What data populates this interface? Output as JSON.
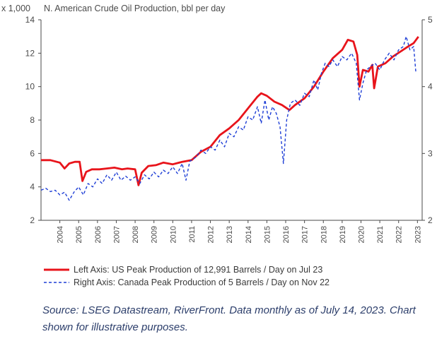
{
  "chart_data": {
    "type": "line",
    "title": "N. American Crude Oil Production, bbl per day",
    "left_axis": {
      "unit_label": "x 1,000",
      "ylim": [
        2,
        14
      ],
      "ticks": [
        2,
        4,
        6,
        8,
        10,
        12,
        14
      ]
    },
    "right_axis": {
      "ylim": [
        2,
        5
      ],
      "ticks": [
        2,
        3,
        4,
        5
      ]
    },
    "x_ticks": [
      "2004",
      "2005",
      "2006",
      "2007",
      "2008",
      "2009",
      "2010",
      "2011",
      "2012",
      "2013",
      "2014",
      "2015",
      "2016",
      "2017",
      "2018",
      "2019",
      "2020",
      "2021",
      "2022",
      "2023"
    ],
    "xlim": [
      2003.5,
      2023.75
    ],
    "grid": false,
    "series": [
      {
        "name": "Left Axis: US Peak Production of 12,991 Barrels / Day on Jul 23",
        "axis": "left",
        "color": "#e8141b",
        "style": "solid",
        "points": [
          [
            2003.5,
            5.6
          ],
          [
            2004.0,
            5.6
          ],
          [
            2004.5,
            5.45
          ],
          [
            2004.75,
            5.1
          ],
          [
            2005.0,
            5.4
          ],
          [
            2005.3,
            5.5
          ],
          [
            2005.55,
            5.5
          ],
          [
            2005.7,
            4.35
          ],
          [
            2005.9,
            4.9
          ],
          [
            2006.2,
            5.05
          ],
          [
            2006.6,
            5.05
          ],
          [
            2007.0,
            5.1
          ],
          [
            2007.4,
            5.15
          ],
          [
            2007.8,
            5.05
          ],
          [
            2008.1,
            5.1
          ],
          [
            2008.5,
            5.05
          ],
          [
            2008.68,
            4.1
          ],
          [
            2008.85,
            4.85
          ],
          [
            2009.2,
            5.25
          ],
          [
            2009.6,
            5.3
          ],
          [
            2010.0,
            5.45
          ],
          [
            2010.5,
            5.35
          ],
          [
            2011.0,
            5.5
          ],
          [
            2011.5,
            5.6
          ],
          [
            2012.0,
            6.1
          ],
          [
            2012.5,
            6.4
          ],
          [
            2013.0,
            7.1
          ],
          [
            2013.5,
            7.5
          ],
          [
            2014.0,
            8.0
          ],
          [
            2014.5,
            8.7
          ],
          [
            2015.0,
            9.4
          ],
          [
            2015.2,
            9.6
          ],
          [
            2015.5,
            9.45
          ],
          [
            2015.9,
            9.1
          ],
          [
            2016.3,
            8.9
          ],
          [
            2016.7,
            8.6
          ],
          [
            2017.0,
            8.9
          ],
          [
            2017.5,
            9.3
          ],
          [
            2018.0,
            10.0
          ],
          [
            2018.5,
            10.9
          ],
          [
            2019.0,
            11.7
          ],
          [
            2019.5,
            12.2
          ],
          [
            2019.8,
            12.8
          ],
          [
            2020.1,
            12.7
          ],
          [
            2020.3,
            11.9
          ],
          [
            2020.42,
            10.0
          ],
          [
            2020.6,
            11.0
          ],
          [
            2020.9,
            10.9
          ],
          [
            2021.1,
            11.3
          ],
          [
            2021.2,
            9.9
          ],
          [
            2021.4,
            11.2
          ],
          [
            2021.8,
            11.4
          ],
          [
            2022.2,
            11.8
          ],
          [
            2022.6,
            12.1
          ],
          [
            2023.0,
            12.4
          ],
          [
            2023.3,
            12.6
          ],
          [
            2023.55,
            12.99
          ]
        ]
      },
      {
        "name": "Right Axis: Canada Peak Production of 5 Barrels / Day on Nov 22",
        "axis": "right",
        "color": "#1f3fd6",
        "style": "dashed",
        "points": [
          [
            2003.5,
            2.45
          ],
          [
            2003.75,
            2.48
          ],
          [
            2004.0,
            2.43
          ],
          [
            2004.25,
            2.45
          ],
          [
            2004.5,
            2.38
          ],
          [
            2004.75,
            2.42
          ],
          [
            2005.0,
            2.3
          ],
          [
            2005.25,
            2.42
          ],
          [
            2005.5,
            2.5
          ],
          [
            2005.75,
            2.38
          ],
          [
            2006.0,
            2.55
          ],
          [
            2006.25,
            2.5
          ],
          [
            2006.5,
            2.62
          ],
          [
            2006.75,
            2.55
          ],
          [
            2007.0,
            2.68
          ],
          [
            2007.25,
            2.6
          ],
          [
            2007.5,
            2.72
          ],
          [
            2007.75,
            2.6
          ],
          [
            2008.0,
            2.66
          ],
          [
            2008.25,
            2.6
          ],
          [
            2008.5,
            2.65
          ],
          [
            2008.75,
            2.55
          ],
          [
            2009.0,
            2.68
          ],
          [
            2009.25,
            2.62
          ],
          [
            2009.5,
            2.72
          ],
          [
            2009.75,
            2.65
          ],
          [
            2010.0,
            2.75
          ],
          [
            2010.25,
            2.7
          ],
          [
            2010.5,
            2.8
          ],
          [
            2010.75,
            2.7
          ],
          [
            2011.0,
            2.85
          ],
          [
            2011.2,
            2.6
          ],
          [
            2011.4,
            2.88
          ],
          [
            2011.75,
            2.95
          ],
          [
            2012.0,
            3.05
          ],
          [
            2012.25,
            3.0
          ],
          [
            2012.5,
            3.1
          ],
          [
            2012.75,
            3.05
          ],
          [
            2013.0,
            3.2
          ],
          [
            2013.25,
            3.1
          ],
          [
            2013.5,
            3.3
          ],
          [
            2013.75,
            3.25
          ],
          [
            2014.0,
            3.4
          ],
          [
            2014.25,
            3.35
          ],
          [
            2014.5,
            3.55
          ],
          [
            2014.75,
            3.5
          ],
          [
            2015.0,
            3.7
          ],
          [
            2015.2,
            3.45
          ],
          [
            2015.4,
            3.8
          ],
          [
            2015.6,
            3.5
          ],
          [
            2015.8,
            3.7
          ],
          [
            2016.0,
            3.6
          ],
          [
            2016.2,
            3.4
          ],
          [
            2016.38,
            2.85
          ],
          [
            2016.55,
            3.5
          ],
          [
            2016.75,
            3.75
          ],
          [
            2017.0,
            3.8
          ],
          [
            2017.25,
            3.72
          ],
          [
            2017.5,
            3.9
          ],
          [
            2017.75,
            3.85
          ],
          [
            2018.0,
            4.1
          ],
          [
            2018.2,
            3.95
          ],
          [
            2018.4,
            4.2
          ],
          [
            2018.6,
            4.35
          ],
          [
            2018.8,
            4.3
          ],
          [
            2019.0,
            4.4
          ],
          [
            2019.25,
            4.3
          ],
          [
            2019.5,
            4.45
          ],
          [
            2019.75,
            4.4
          ],
          [
            2020.0,
            4.5
          ],
          [
            2020.25,
            4.35
          ],
          [
            2020.42,
            3.8
          ],
          [
            2020.6,
            4.05
          ],
          [
            2020.8,
            4.25
          ],
          [
            2021.0,
            4.3
          ],
          [
            2021.25,
            4.35
          ],
          [
            2021.5,
            4.25
          ],
          [
            2021.75,
            4.4
          ],
          [
            2022.0,
            4.5
          ],
          [
            2022.25,
            4.4
          ],
          [
            2022.5,
            4.55
          ],
          [
            2022.75,
            4.6
          ],
          [
            2022.9,
            4.75
          ],
          [
            2023.1,
            4.55
          ],
          [
            2023.3,
            4.6
          ],
          [
            2023.42,
            4.2
          ]
        ]
      }
    ]
  },
  "source_text": "Source: LSEG Datastream, RiverFront. Data monthly as of July 14, 2023. Chart shown for illustrative purposes.",
  "colors": {
    "us": "#e8141b",
    "canada": "#1f3fd6",
    "axis": "#4a4a4a"
  }
}
